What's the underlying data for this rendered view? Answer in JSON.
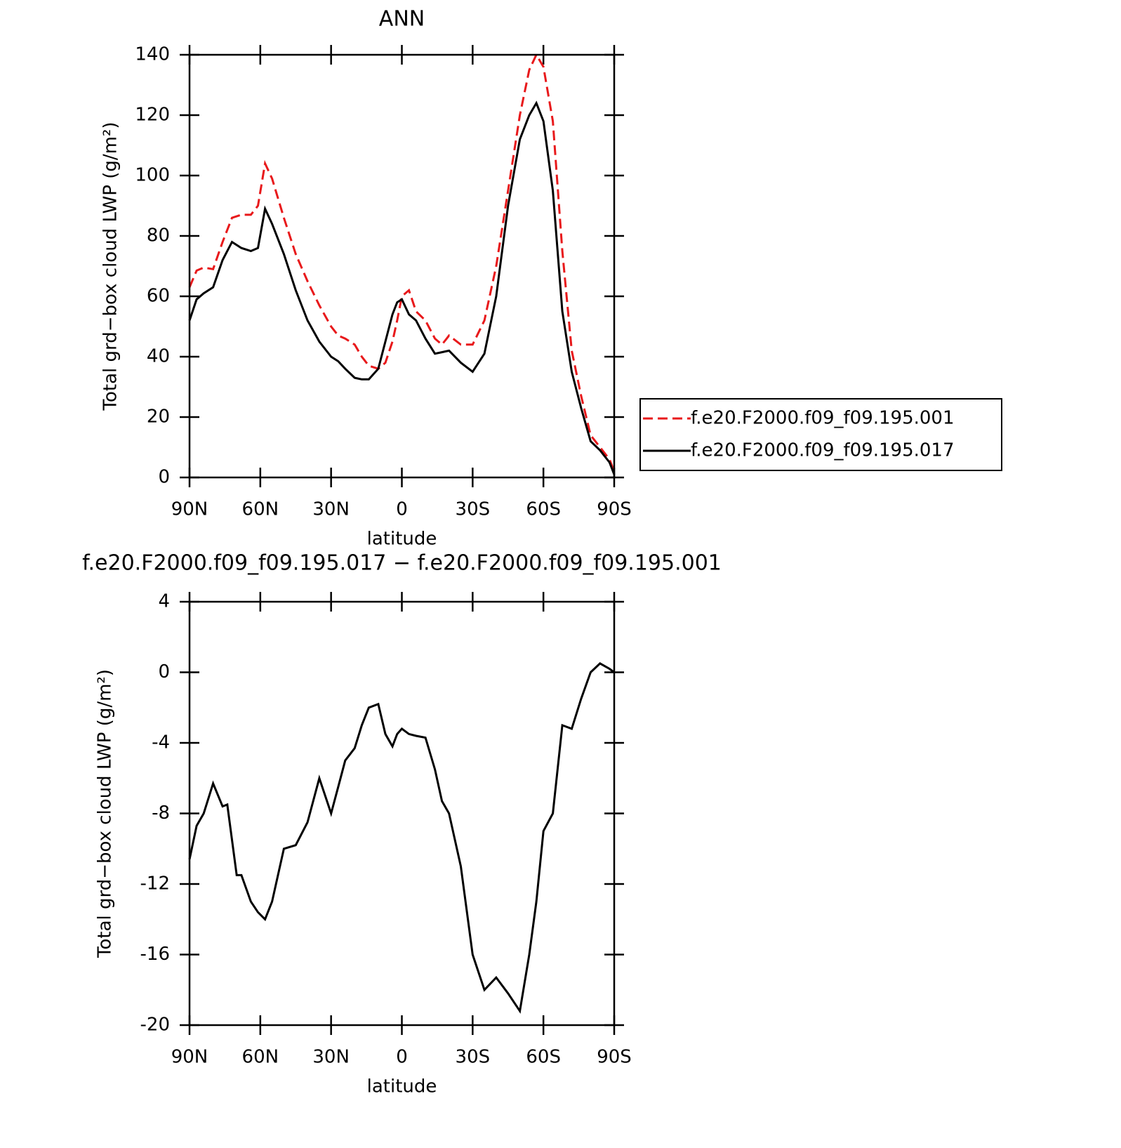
{
  "chart_data": [
    {
      "type": "line",
      "title": "ANN",
      "xlabel": "latitude",
      "ylabel": "Total grd−box cloud LWP (g/m²)",
      "x": [
        90,
        87,
        84,
        80,
        76,
        72,
        68,
        64,
        61,
        58,
        55,
        50,
        45,
        40,
        35,
        30,
        27,
        24,
        20,
        17,
        14,
        10,
        7,
        4,
        2,
        0,
        -3,
        -6,
        -10,
        -14,
        -17,
        -20,
        -25,
        -30,
        -35,
        -40,
        -45,
        -50,
        -54,
        -57,
        -60,
        -64,
        -68,
        -72,
        -76,
        -80,
        -84,
        -88,
        -90
      ],
      "xlim": [
        90,
        -90
      ],
      "xticks": [
        {
          "value": 90,
          "label": "90N"
        },
        {
          "value": 60,
          "label": "60N"
        },
        {
          "value": 30,
          "label": "30N"
        },
        0,
        {
          "value": -30,
          "label": "30S"
        },
        {
          "value": -60,
          "label": "60S"
        },
        {
          "value": -90,
          "label": "90S"
        }
      ],
      "ylim": [
        0,
        140
      ],
      "yticks": [
        0,
        20,
        40,
        60,
        80,
        100,
        120,
        140
      ],
      "legend": "right",
      "series": [
        {
          "name": "f.e20.F2000.f09_f09.195.001",
          "color": "#e8191b",
          "line_style": "dashed",
          "values": [
            63,
            68.5,
            69.5,
            69,
            78,
            86,
            87,
            87,
            90,
            104,
            99,
            86,
            74,
            65,
            57,
            50,
            47,
            46,
            44,
            40,
            37,
            36,
            38,
            45,
            52,
            60,
            62,
            55,
            52,
            46,
            44,
            47,
            44,
            44,
            52,
            70,
            95,
            120,
            135,
            140,
            136,
            118,
            75,
            42,
            27,
            14,
            10,
            6,
            2
          ]
        },
        {
          "name": "f.e20.F2000.f09_f09.195.017",
          "color": "#000000",
          "line_style": "solid",
          "values": [
            52,
            59,
            61,
            63,
            72,
            78,
            76,
            75,
            76,
            89,
            84,
            74,
            62,
            52,
            45,
            40,
            38.5,
            36,
            33,
            32.5,
            32.5,
            36,
            45,
            54,
            58,
            59,
            54,
            52,
            46,
            41,
            41.5,
            42,
            38,
            35,
            41,
            60,
            90,
            112,
            120,
            124,
            118,
            95,
            55,
            35,
            23,
            12,
            9,
            5,
            1
          ]
        }
      ]
    },
    {
      "type": "line",
      "title": "f.e20.F2000.f09_f09.195.017 − f.e20.F2000.f09_f09.195.001",
      "xlabel": "latitude",
      "ylabel": "Total grd−box cloud LWP (g/m²)",
      "x": [
        90,
        87,
        84,
        80,
        76,
        74,
        70,
        68,
        64,
        61,
        58,
        55,
        50,
        45,
        40,
        35,
        30,
        27,
        24,
        20,
        17,
        14,
        10,
        7,
        4,
        2,
        0,
        -3,
        -6,
        -10,
        -14,
        -17,
        -20,
        -25,
        -30,
        -35,
        -40,
        -45,
        -50,
        -54,
        -57,
        -60,
        -64,
        -68,
        -72,
        -76,
        -80,
        -84,
        -88,
        -90
      ],
      "xlim": [
        90,
        -90
      ],
      "xticks": [
        {
          "value": 90,
          "label": "90N"
        },
        {
          "value": 60,
          "label": "60N"
        },
        {
          "value": 30,
          "label": "30N"
        },
        0,
        {
          "value": -30,
          "label": "30S"
        },
        {
          "value": -60,
          "label": "60S"
        },
        {
          "value": -90,
          "label": "90S"
        }
      ],
      "ylim": [
        -20,
        4
      ],
      "yticks": [
        -20,
        -16,
        -12,
        -8,
        -4,
        0,
        4
      ],
      "series": [
        {
          "color": "#000000",
          "line_style": "solid",
          "values": [
            -10.6,
            -8.7,
            -8,
            -6.3,
            -7.6,
            -7.5,
            -11.5,
            -11.5,
            -13,
            -13.6,
            -14,
            -13,
            -10,
            -9.8,
            -8.5,
            -6,
            -8,
            -6.5,
            -5,
            -4.3,
            -3,
            -2,
            -1.8,
            -3.5,
            -4.2,
            -3.5,
            -3.2,
            -3.5,
            -3.6,
            -3.7,
            -5.5,
            -7.3,
            -8,
            -11,
            -16,
            -18,
            -17.3,
            -18.2,
            -19.2,
            -16,
            -13,
            -9,
            -8,
            -3,
            -3.2,
            -1.5,
            0,
            0.5,
            0.2,
            0
          ]
        }
      ]
    }
  ]
}
